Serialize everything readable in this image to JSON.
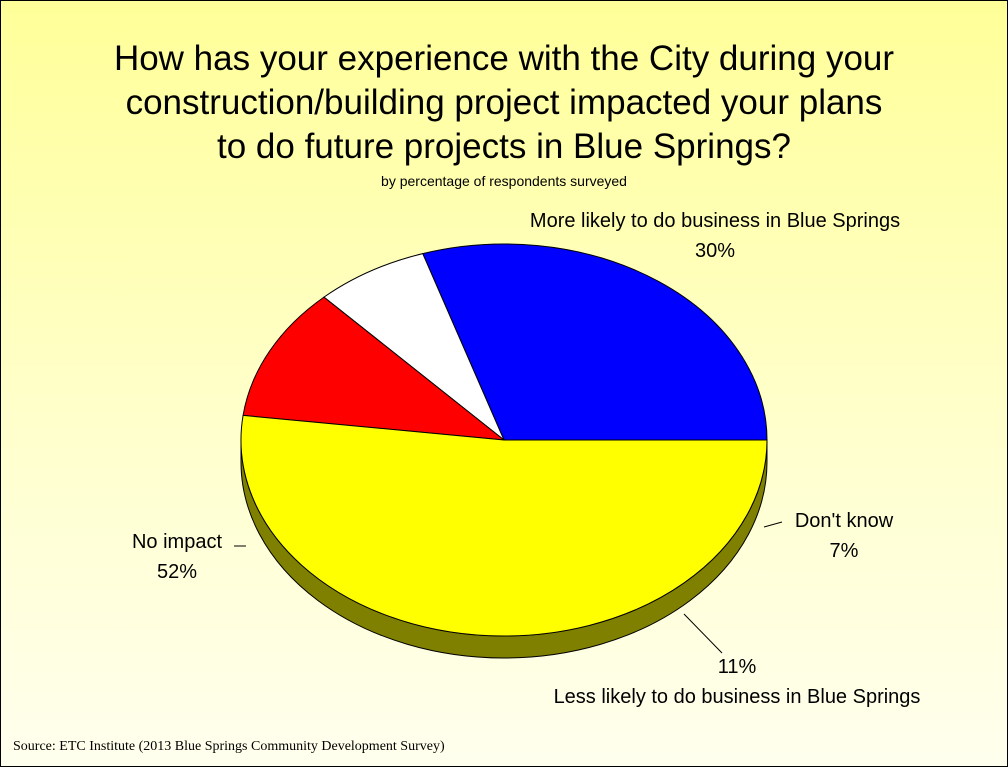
{
  "chart_data": {
    "type": "pie",
    "title_lines": [
      "How has your experience with the City during your",
      "construction/building project impacted your plans",
      "to do future projects in Blue Springs?"
    ],
    "subtitle": "by percentage of respondents surveyed",
    "slices": [
      {
        "label": "More likely to do business in Blue Springs",
        "value": 30,
        "value_label": "30%",
        "color": "#0000ff",
        "side_color": "#00007f"
      },
      {
        "label": "Don't know",
        "value": 7,
        "value_label": "7%",
        "color": "#ffffff",
        "side_color": "#808080"
      },
      {
        "label": "Less likely to do business in Blue Springs",
        "value": 11,
        "value_label": "11%",
        "color": "#ff0000",
        "side_color": "#800000"
      },
      {
        "label": "No impact",
        "value": 52,
        "value_label": "52%",
        "color": "#ffff00",
        "side_color": "#808000"
      }
    ],
    "three_d": true
  },
  "footer": {
    "source": "Source: ETC Institute (2013 Blue Springs Community Development Survey)"
  }
}
